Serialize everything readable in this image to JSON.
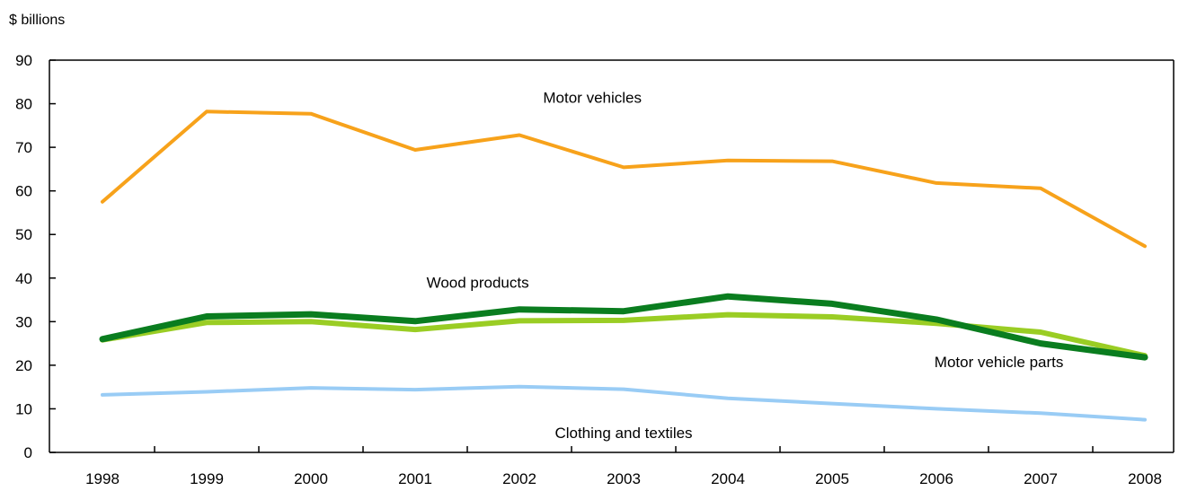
{
  "chart_data": {
    "type": "line",
    "ylabel": "$ billions",
    "ylim": [
      0,
      90
    ],
    "yticks": [
      0,
      10,
      20,
      30,
      40,
      50,
      60,
      70,
      80,
      90
    ],
    "categories": [
      "1998",
      "1999",
      "2000",
      "2001",
      "2002",
      "2003",
      "2004",
      "2005",
      "2006",
      "2007",
      "2008"
    ],
    "grid": false,
    "series": [
      {
        "name": "Motor vehicles",
        "color": "#f7a21b",
        "values": [
          57.5,
          78.2,
          77.7,
          69.4,
          72.8,
          65.4,
          67.0,
          66.8,
          61.8,
          60.6,
          47.3
        ]
      },
      {
        "name": "Wood products",
        "color": "#0a7d1f",
        "values": [
          26.0,
          31.2,
          31.7,
          30.1,
          32.8,
          32.4,
          35.8,
          34.1,
          30.5,
          25.0,
          21.8
        ]
      },
      {
        "name": "Motor vehicle parts",
        "color": "#9acd24",
        "values": [
          25.8,
          29.8,
          30.0,
          28.2,
          30.2,
          30.3,
          31.6,
          31.1,
          29.6,
          27.6,
          22.2
        ]
      },
      {
        "name": "Clothing and textiles",
        "color": "#99ccf5",
        "values": [
          13.2,
          13.9,
          14.8,
          14.4,
          15.1,
          14.5,
          12.4,
          11.2,
          10.0,
          9.0,
          7.5
        ]
      }
    ],
    "annotations": [
      {
        "text": "Motor vehicles",
        "x": "2002.7",
        "y": 81.5
      },
      {
        "text": "Wood products",
        "x": "2001.6",
        "y": 39.0
      },
      {
        "text": "Motor vehicle parts",
        "x": "2006.6",
        "y": 20.8
      },
      {
        "text": "Clothing and textiles",
        "x": "2003.0",
        "y": 4.5
      }
    ]
  }
}
